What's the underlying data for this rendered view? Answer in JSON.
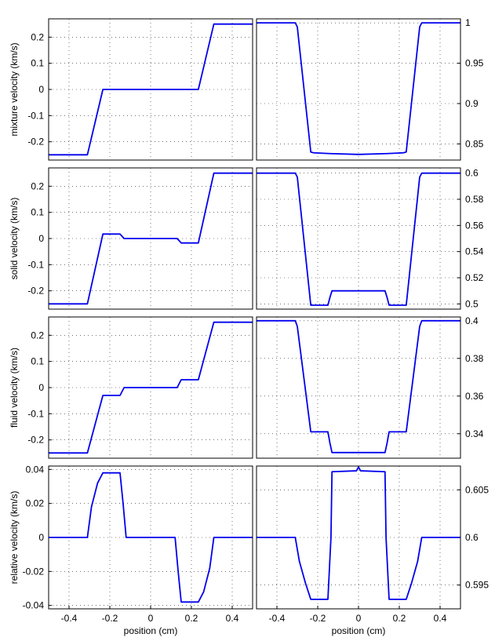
{
  "chart_data": [
    {
      "type": "line",
      "xlim": [
        -0.5,
        0.5
      ],
      "ylim": [
        -0.27,
        0.27
      ],
      "yticks": [
        -0.2,
        -0.1,
        0,
        0.1,
        0.2
      ],
      "ytick_labels": [
        "-0.2",
        "-0.1",
        "0",
        "0.1",
        "0.2"
      ],
      "ylabel": "mixture velocity (km/s)",
      "xlabel": "",
      "grid": true,
      "series": [
        {
          "color": "#0000ee",
          "x": [
            -0.5,
            -0.31,
            -0.234,
            -0.22,
            0.22,
            0.234,
            0.31,
            0.5
          ],
          "y": [
            -0.25,
            -0.25,
            0.0,
            0.0,
            0.0,
            0.0,
            0.25,
            0.25
          ]
        }
      ]
    },
    {
      "type": "line",
      "xlim": [
        -0.5,
        0.5
      ],
      "ylim": [
        0.83,
        1.005
      ],
      "yticks": [
        0.85,
        0.9,
        0.95,
        1
      ],
      "ytick_labels": [
        "0.85",
        "0.9",
        "0.95",
        "1"
      ],
      "ylabel": "",
      "grid": true,
      "series": [
        {
          "color": "#0000ee",
          "x": [
            -0.5,
            -0.31,
            -0.3,
            -0.234,
            -0.22,
            -0.14,
            0.0,
            0.14,
            0.22,
            0.234,
            0.3,
            0.31,
            0.5
          ],
          "y": [
            1.0,
            1.0,
            0.995,
            0.84,
            0.839,
            0.838,
            0.837,
            0.838,
            0.839,
            0.84,
            0.995,
            1.0,
            1.0
          ]
        }
      ]
    },
    {
      "type": "line",
      "xlim": [
        -0.5,
        0.5
      ],
      "ylim": [
        -0.27,
        0.27
      ],
      "yticks": [
        -0.2,
        -0.1,
        0,
        0.1,
        0.2
      ],
      "ytick_labels": [
        "-0.2",
        "-0.1",
        "0",
        "0.1",
        "0.2"
      ],
      "ylabel": "solid velocity (km/s)",
      "xlabel": "",
      "grid": true,
      "series": [
        {
          "color": "#0000ee",
          "x": [
            -0.5,
            -0.31,
            -0.234,
            -0.22,
            -0.15,
            -0.13,
            0.13,
            0.15,
            0.22,
            0.234,
            0.31,
            0.5
          ],
          "y": [
            -0.25,
            -0.25,
            0.017,
            0.017,
            0.017,
            0.0,
            0.0,
            -0.017,
            -0.017,
            -0.017,
            0.25,
            0.25
          ]
        }
      ]
    },
    {
      "type": "line",
      "xlim": [
        -0.5,
        0.5
      ],
      "ylim": [
        0.496,
        0.604
      ],
      "yticks": [
        0.5,
        0.52,
        0.54,
        0.56,
        0.58,
        0.6
      ],
      "ytick_labels": [
        "0.5",
        "0.52",
        "0.54",
        "0.56",
        "0.58",
        "0.6"
      ],
      "ylabel": "",
      "grid": true,
      "series": [
        {
          "color": "#0000ee",
          "x": [
            -0.5,
            -0.31,
            -0.3,
            -0.234,
            -0.15,
            -0.14,
            -0.13,
            0.0,
            0.13,
            0.14,
            0.15,
            0.234,
            0.3,
            0.31,
            0.5
          ],
          "y": [
            0.6,
            0.6,
            0.597,
            0.499,
            0.499,
            0.505,
            0.51,
            0.51,
            0.51,
            0.505,
            0.499,
            0.499,
            0.597,
            0.6,
            0.6
          ]
        }
      ]
    },
    {
      "type": "line",
      "xlim": [
        -0.5,
        0.5
      ],
      "ylim": [
        -0.27,
        0.27
      ],
      "yticks": [
        -0.2,
        -0.1,
        0,
        0.1,
        0.2
      ],
      "ytick_labels": [
        "-0.2",
        "-0.1",
        "0",
        "0.1",
        "0.2"
      ],
      "ylabel": "fluid velocity (km/s)",
      "xlabel": "",
      "grid": true,
      "series": [
        {
          "color": "#0000ee",
          "x": [
            -0.5,
            -0.31,
            -0.234,
            -0.22,
            -0.15,
            -0.13,
            0.13,
            0.15,
            0.22,
            0.234,
            0.31,
            0.5
          ],
          "y": [
            -0.25,
            -0.25,
            -0.03,
            -0.03,
            -0.03,
            0.0,
            0.0,
            0.03,
            0.03,
            0.03,
            0.25,
            0.25
          ]
        }
      ]
    },
    {
      "type": "line",
      "xlim": [
        -0.5,
        0.5
      ],
      "ylim": [
        0.327,
        0.402
      ],
      "yticks": [
        0.34,
        0.36,
        0.38,
        0.4
      ],
      "ytick_labels": [
        "0.34",
        "0.36",
        "0.38",
        "0.4"
      ],
      "ylabel": "",
      "grid": true,
      "series": [
        {
          "color": "#0000ee",
          "x": [
            -0.5,
            -0.31,
            -0.3,
            -0.234,
            -0.15,
            -0.14,
            -0.13,
            0.0,
            0.13,
            0.14,
            0.15,
            0.234,
            0.3,
            0.31,
            0.5
          ],
          "y": [
            0.4,
            0.4,
            0.397,
            0.341,
            0.341,
            0.335,
            0.33,
            0.33,
            0.33,
            0.335,
            0.341,
            0.341,
            0.397,
            0.4,
            0.4
          ]
        }
      ]
    },
    {
      "type": "line",
      "xlim": [
        -0.5,
        0.5
      ],
      "ylim": [
        -0.042,
        0.042
      ],
      "xticks": [
        -0.4,
        -0.2,
        0,
        0.2,
        0.4
      ],
      "xtick_labels": [
        "-0.4",
        "-0.2",
        "0",
        "0.2",
        "0.4"
      ],
      "yticks": [
        -0.04,
        -0.02,
        0,
        0.02,
        0.04
      ],
      "ytick_labels": [
        "-0.04",
        "-0.02",
        "0",
        "0.02",
        "0.04"
      ],
      "ylabel": "relative velocity (km/s)",
      "xlabel": "position (cm)",
      "grid": true,
      "series": [
        {
          "color": "#0000ee",
          "x": [
            -0.5,
            -0.31,
            -0.29,
            -0.26,
            -0.234,
            -0.15,
            -0.135,
            -0.12,
            0.12,
            0.135,
            0.15,
            0.234,
            0.26,
            0.29,
            0.31,
            0.5
          ],
          "y": [
            0.0,
            0.0,
            0.018,
            0.032,
            0.038,
            0.038,
            0.02,
            0.0,
            0.0,
            -0.02,
            -0.038,
            -0.038,
            -0.032,
            -0.018,
            0.0,
            0.0
          ]
        }
      ]
    },
    {
      "type": "line",
      "xlim": [
        -0.5,
        0.5
      ],
      "ylim": [
        0.5925,
        0.6075
      ],
      "xticks": [
        -0.4,
        -0.2,
        0,
        0.2,
        0.4
      ],
      "xtick_labels": [
        "-0.4",
        "-0.2",
        "0",
        "0.2",
        "0.4"
      ],
      "yticks": [
        0.595,
        0.6,
        0.605
      ],
      "ytick_labels": [
        "0.595",
        "0.6",
        "0.605"
      ],
      "ylabel": "",
      "xlabel": "position (cm)",
      "grid": true,
      "series": [
        {
          "color": "#0000ee",
          "x": [
            -0.5,
            -0.31,
            -0.29,
            -0.26,
            -0.234,
            -0.15,
            -0.135,
            -0.13,
            -0.01,
            0.0,
            0.01,
            0.13,
            0.135,
            0.15,
            0.234,
            0.26,
            0.29,
            0.31,
            0.5
          ],
          "y": [
            0.6,
            0.6,
            0.5975,
            0.5952,
            0.5935,
            0.5935,
            0.6,
            0.6069,
            0.607,
            0.6074,
            0.607,
            0.6069,
            0.6,
            0.5935,
            0.5935,
            0.5952,
            0.5975,
            0.6,
            0.6
          ]
        }
      ]
    }
  ]
}
